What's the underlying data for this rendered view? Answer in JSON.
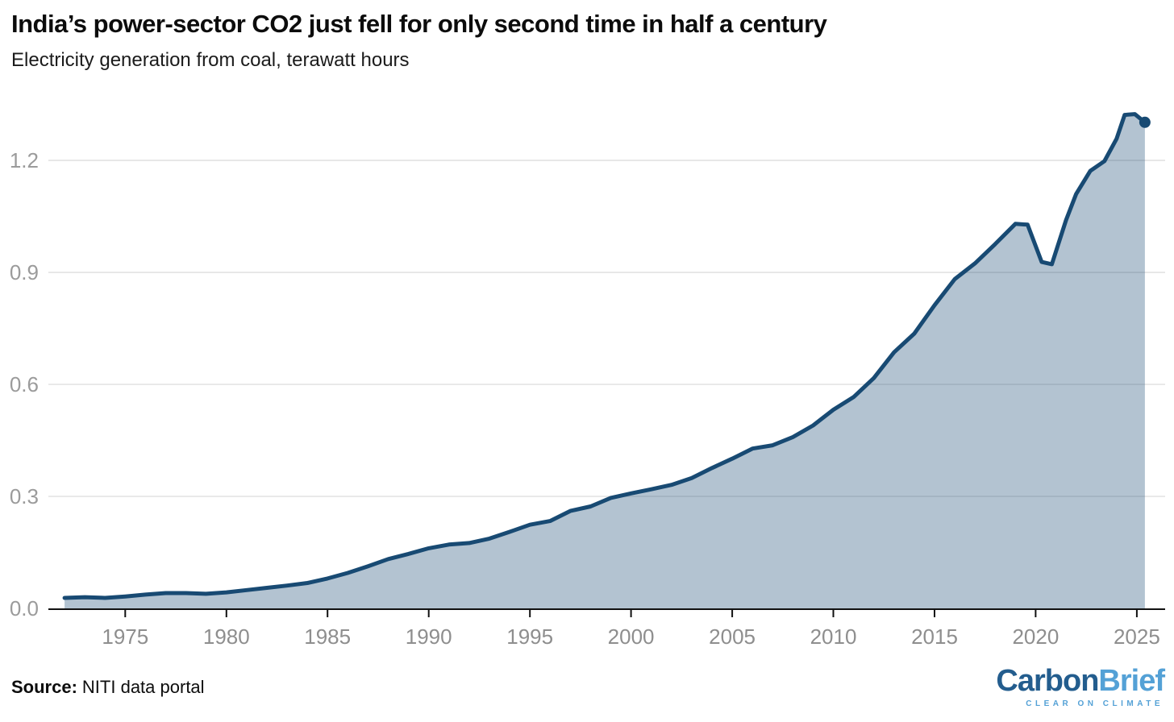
{
  "header": {
    "title": "India’s power-sector CO2 just fell for only second time in half a century",
    "subtitle": "Electricity generation from coal, terawatt hours"
  },
  "footer": {
    "source_label": "Source:",
    "source_text": "NITI data portal",
    "logo": {
      "part1": "Carbon",
      "part2": "Brief",
      "tagline": "CLEAR ON CLIMATE"
    }
  },
  "colors": {
    "line": "#184a73",
    "area_fill": "rgba(24,74,115,0.33)",
    "grid": "#e2e2e2",
    "axis": "#111111",
    "tick_label": "#8e8e8e",
    "y_label": "#9b9b9b",
    "title": "#0c0c0c",
    "logo_dark": "#235d8e",
    "logo_light": "#54a1d6"
  },
  "chart_data": {
    "type": "area",
    "title": "India’s power-sector CO2 just fell for only second time in half a century",
    "subtitle": "Electricity generation from coal, terawatt hours",
    "series_name": "Electricity generation from coal, terawatt hours",
    "x_unit": "year",
    "x": [
      1972,
      1973,
      1974,
      1975,
      1976,
      1977,
      1978,
      1979,
      1980,
      1981,
      1982,
      1983,
      1984,
      1985,
      1986,
      1987,
      1988,
      1989,
      1990,
      1991,
      1992,
      1993,
      1994,
      1995,
      1996,
      1997,
      1998,
      1999,
      2000,
      2001,
      2002,
      2003,
      2004,
      2005,
      2006,
      2007,
      2008,
      2009,
      2010,
      2011,
      2012,
      2013,
      2014,
      2015,
      2016,
      2017,
      2018,
      2019,
      2019.6,
      2020.3,
      2020.8,
      2021.5,
      2022,
      2022.7,
      2023.4,
      2024,
      2024.4,
      2024.9,
      2025.4
    ],
    "values": [
      0.028,
      0.03,
      0.028,
      0.032,
      0.037,
      0.041,
      0.041,
      0.039,
      0.043,
      0.049,
      0.055,
      0.061,
      0.068,
      0.08,
      0.095,
      0.113,
      0.132,
      0.146,
      0.161,
      0.171,
      0.175,
      0.187,
      0.205,
      0.224,
      0.234,
      0.261,
      0.273,
      0.296,
      0.308,
      0.319,
      0.331,
      0.349,
      0.376,
      0.401,
      0.428,
      0.437,
      0.459,
      0.49,
      0.532,
      0.566,
      0.617,
      0.686,
      0.736,
      0.812,
      0.882,
      0.924,
      0.976,
      1.03,
      1.028,
      0.928,
      0.922,
      1.04,
      1.11,
      1.172,
      1.198,
      1.258,
      1.322,
      1.324,
      1.302
    ],
    "xticks": [
      1975,
      1980,
      1985,
      1990,
      1995,
      2000,
      2005,
      2010,
      2015,
      2020,
      2025
    ],
    "ytick_values": [
      0,
      0.3,
      0.6,
      0.9,
      1.2
    ],
    "ytick_labels": [
      "0.0",
      "0.3",
      "0.6",
      "0.9",
      "1.2"
    ],
    "xlim": [
      1971.2,
      2026.4
    ],
    "ylim": [
      0,
      1.35
    ],
    "grid": "horizontal",
    "legend": "none",
    "end_marker": {
      "x": 2025.4,
      "value": 1.302
    }
  }
}
